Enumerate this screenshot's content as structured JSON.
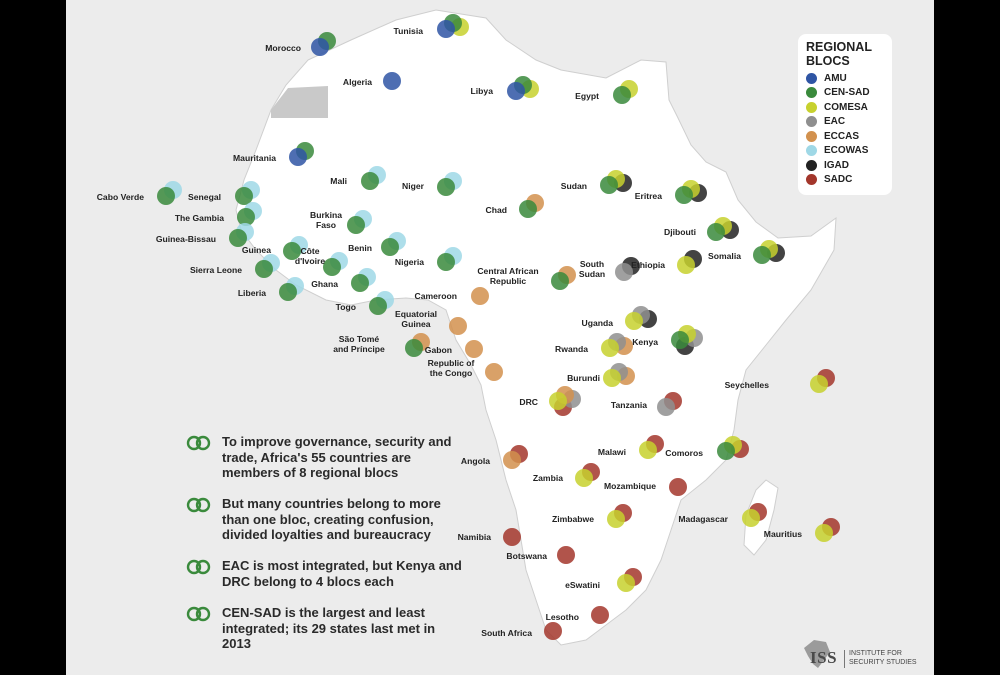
{
  "legend": {
    "title_line1": "REGIONAL",
    "title_line2": "BLOCS",
    "items": [
      {
        "name": "AMU",
        "color": "#2f55a4"
      },
      {
        "name": "CEN-SAD",
        "color": "#3a8a3c"
      },
      {
        "name": "COMESA",
        "color": "#c7d12e"
      },
      {
        "name": "EAC",
        "color": "#8f8f8f"
      },
      {
        "name": "ECCAS",
        "color": "#d2914e"
      },
      {
        "name": "ECOWAS",
        "color": "#9fd8e6"
      },
      {
        "name": "IGAD",
        "color": "#222222"
      },
      {
        "name": "SADC",
        "color": "#a3362b"
      }
    ]
  },
  "notes": [
    "To improve governance, security and trade, Africa's 55 countries are members of 8 regional blocs",
    "But many countries belong to more than one bloc, creating confusion, divided loyalties and bureaucracy",
    "EAC is most integrated, but Kenya and DRC belong to 4 blocs each",
    "CEN-SAD is the largest and least integrated; its 29 states last met in 2013"
  ],
  "logo": {
    "short": "ISS",
    "full_line1": "INSTITUTE FOR",
    "full_line2": "SECURITY STUDIES"
  },
  "countries": [
    {
      "name": "Morocco",
      "blocs": [
        "AMU",
        "CEN-SAD"
      ]
    },
    {
      "name": "Algeria",
      "blocs": [
        "AMU"
      ]
    },
    {
      "name": "Tunisia",
      "blocs": [
        "AMU",
        "CEN-SAD",
        "COMESA"
      ]
    },
    {
      "name": "Libya",
      "blocs": [
        "AMU",
        "CEN-SAD",
        "COMESA"
      ]
    },
    {
      "name": "Egypt",
      "blocs": [
        "CEN-SAD",
        "COMESA"
      ]
    },
    {
      "name": "Mauritania",
      "blocs": [
        "AMU",
        "CEN-SAD"
      ]
    },
    {
      "name": "Mali",
      "blocs": [
        "CEN-SAD",
        "ECOWAS"
      ]
    },
    {
      "name": "Niger",
      "blocs": [
        "CEN-SAD",
        "ECOWAS"
      ]
    },
    {
      "name": "Chad",
      "blocs": [
        "CEN-SAD",
        "ECCAS"
      ]
    },
    {
      "name": "Sudan",
      "blocs": [
        "CEN-SAD",
        "COMESA",
        "IGAD"
      ]
    },
    {
      "name": "Eritrea",
      "blocs": [
        "CEN-SAD",
        "COMESA",
        "IGAD"
      ]
    },
    {
      "name": "Cabo Verde",
      "blocs": [
        "CEN-SAD",
        "ECOWAS"
      ]
    },
    {
      "name": "Senegal",
      "blocs": [
        "CEN-SAD",
        "ECOWAS"
      ]
    },
    {
      "name": "The Gambia",
      "blocs": [
        "CEN-SAD",
        "ECOWAS"
      ]
    },
    {
      "name": "Guinea-Bissau",
      "blocs": [
        "CEN-SAD",
        "ECOWAS"
      ]
    },
    {
      "name": "Guinea",
      "blocs": [
        "CEN-SAD",
        "ECOWAS"
      ]
    },
    {
      "name": "Sierra Leone",
      "blocs": [
        "CEN-SAD",
        "ECOWAS"
      ]
    },
    {
      "name": "Liberia",
      "blocs": [
        "CEN-SAD",
        "ECOWAS"
      ]
    },
    {
      "name": "Côte d'Ivoire",
      "blocs": [
        "CEN-SAD",
        "ECOWAS"
      ]
    },
    {
      "name": "Burkina Faso",
      "blocs": [
        "CEN-SAD",
        "ECOWAS"
      ]
    },
    {
      "name": "Ghana",
      "blocs": [
        "CEN-SAD",
        "ECOWAS"
      ]
    },
    {
      "name": "Togo",
      "blocs": [
        "CEN-SAD",
        "ECOWAS"
      ]
    },
    {
      "name": "Benin",
      "blocs": [
        "CEN-SAD",
        "ECOWAS"
      ]
    },
    {
      "name": "Nigeria",
      "blocs": [
        "CEN-SAD",
        "ECOWAS"
      ]
    },
    {
      "name": "Cameroon",
      "blocs": [
        "ECCAS"
      ]
    },
    {
      "name": "Central African Republic",
      "blocs": [
        "CEN-SAD",
        "ECCAS"
      ]
    },
    {
      "name": "Equatorial Guinea",
      "blocs": [
        "ECCAS"
      ]
    },
    {
      "name": "São Tomé and Príncipe",
      "blocs": [
        "CEN-SAD",
        "ECCAS"
      ]
    },
    {
      "name": "Gabon",
      "blocs": [
        "ECCAS"
      ]
    },
    {
      "name": "Republic of the Congo",
      "blocs": [
        "ECCAS"
      ]
    },
    {
      "name": "Djibouti",
      "blocs": [
        "CEN-SAD",
        "COMESA",
        "IGAD"
      ]
    },
    {
      "name": "Somalia",
      "blocs": [
        "CEN-SAD",
        "COMESA",
        "IGAD"
      ]
    },
    {
      "name": "Ethiopia",
      "blocs": [
        "COMESA",
        "IGAD"
      ]
    },
    {
      "name": "South Sudan",
      "blocs": [
        "EAC",
        "IGAD"
      ]
    },
    {
      "name": "Uganda",
      "blocs": [
        "COMESA",
        "EAC",
        "IGAD"
      ]
    },
    {
      "name": "Kenya",
      "blocs": [
        "CEN-SAD",
        "COMESA",
        "EAC",
        "IGAD"
      ]
    },
    {
      "name": "Rwanda",
      "blocs": [
        "COMESA",
        "EAC",
        "ECCAS"
      ]
    },
    {
      "name": "Burundi",
      "blocs": [
        "COMESA",
        "EAC",
        "ECCAS"
      ]
    },
    {
      "name": "DRC",
      "blocs": [
        "COMESA",
        "ECCAS",
        "EAC",
        "SADC"
      ]
    },
    {
      "name": "Tanzania",
      "blocs": [
        "EAC",
        "SADC"
      ]
    },
    {
      "name": "Seychelles",
      "blocs": [
        "COMESA",
        "SADC"
      ]
    },
    {
      "name": "Angola",
      "blocs": [
        "ECCAS",
        "SADC"
      ]
    },
    {
      "name": "Malawi",
      "blocs": [
        "COMESA",
        "SADC"
      ]
    },
    {
      "name": "Comoros",
      "blocs": [
        "CEN-SAD",
        "COMESA",
        "SADC"
      ]
    },
    {
      "name": "Zambia",
      "blocs": [
        "COMESA",
        "SADC"
      ]
    },
    {
      "name": "Mozambique",
      "blocs": [
        "SADC"
      ]
    },
    {
      "name": "Zimbabwe",
      "blocs": [
        "COMESA",
        "SADC"
      ]
    },
    {
      "name": "Madagascar",
      "blocs": [
        "COMESA",
        "SADC"
      ]
    },
    {
      "name": "Mauritius",
      "blocs": [
        "COMESA",
        "SADC"
      ]
    },
    {
      "name": "Namibia",
      "blocs": [
        "SADC"
      ]
    },
    {
      "name": "Botswana",
      "blocs": [
        "SADC"
      ]
    },
    {
      "name": "eSwatini",
      "blocs": [
        "COMESA",
        "SADC"
      ]
    },
    {
      "name": "Lesotho",
      "blocs": [
        "SADC"
      ]
    },
    {
      "name": "South Africa",
      "blocs": [
        "SADC"
      ]
    }
  ]
}
